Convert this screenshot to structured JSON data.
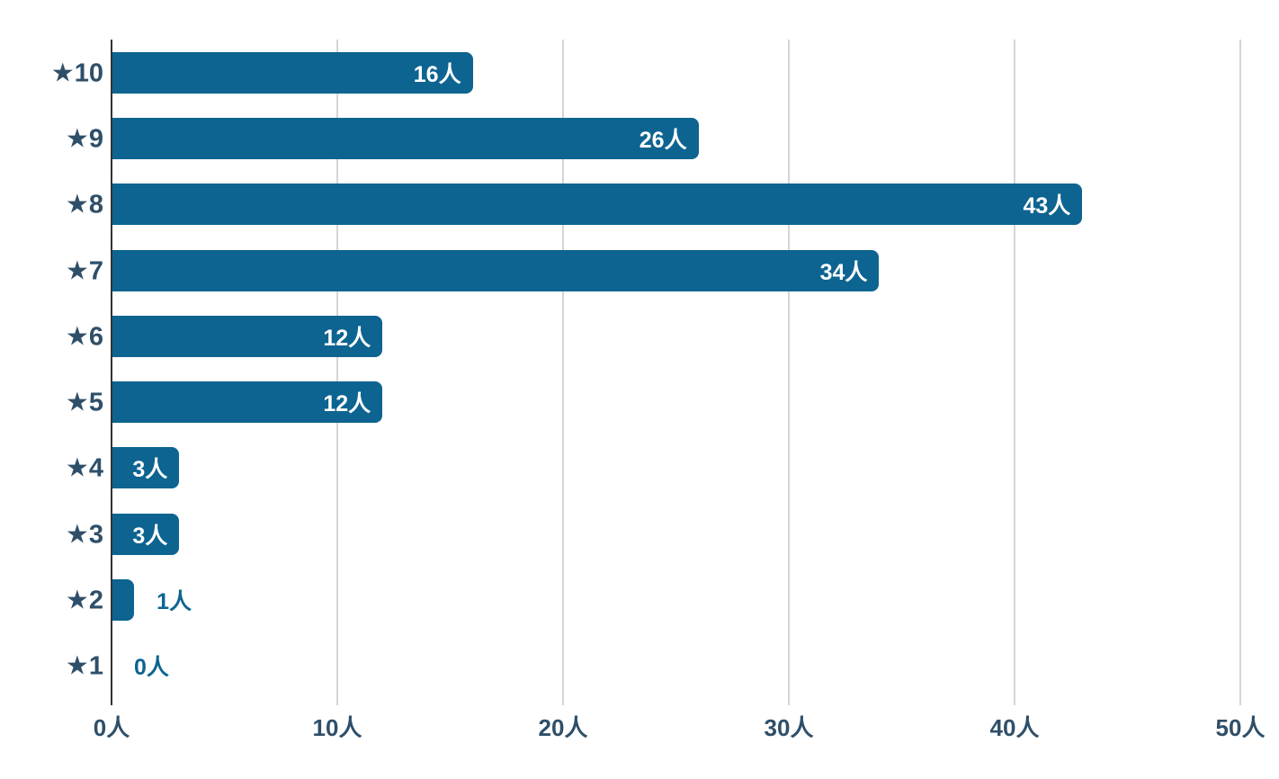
{
  "chart_data": {
    "type": "bar",
    "orientation": "horizontal",
    "title": "",
    "categories": [
      "★10",
      "★9",
      "★8",
      "★7",
      "★6",
      "★5",
      "★4",
      "★3",
      "★2",
      "★1"
    ],
    "values": [
      16,
      26,
      43,
      34,
      12,
      12,
      3,
      3,
      1,
      0
    ],
    "unit": "人",
    "value_labels": [
      "16人",
      "26人",
      "43人",
      "34人",
      "12人",
      "12人",
      "3人",
      "3人",
      "1人",
      "0人"
    ],
    "x_tick_labels": [
      "0人",
      "10人",
      "20人",
      "30人",
      "40人",
      "50人"
    ],
    "x_tick_values": [
      0,
      10,
      20,
      30,
      40,
      50
    ],
    "xlim": [
      0,
      50
    ],
    "xlabel": "",
    "ylabel": "",
    "grid": "vertical-only",
    "legend": "none",
    "colors": {
      "bar": "#0d6491",
      "axis_label": "#2f4f69",
      "annotation_inside": "#ffffff",
      "annotation_outside": "#0d6491",
      "gridline": "#d5d5d5",
      "baseline": "#333333",
      "background": "#ffffff"
    }
  }
}
